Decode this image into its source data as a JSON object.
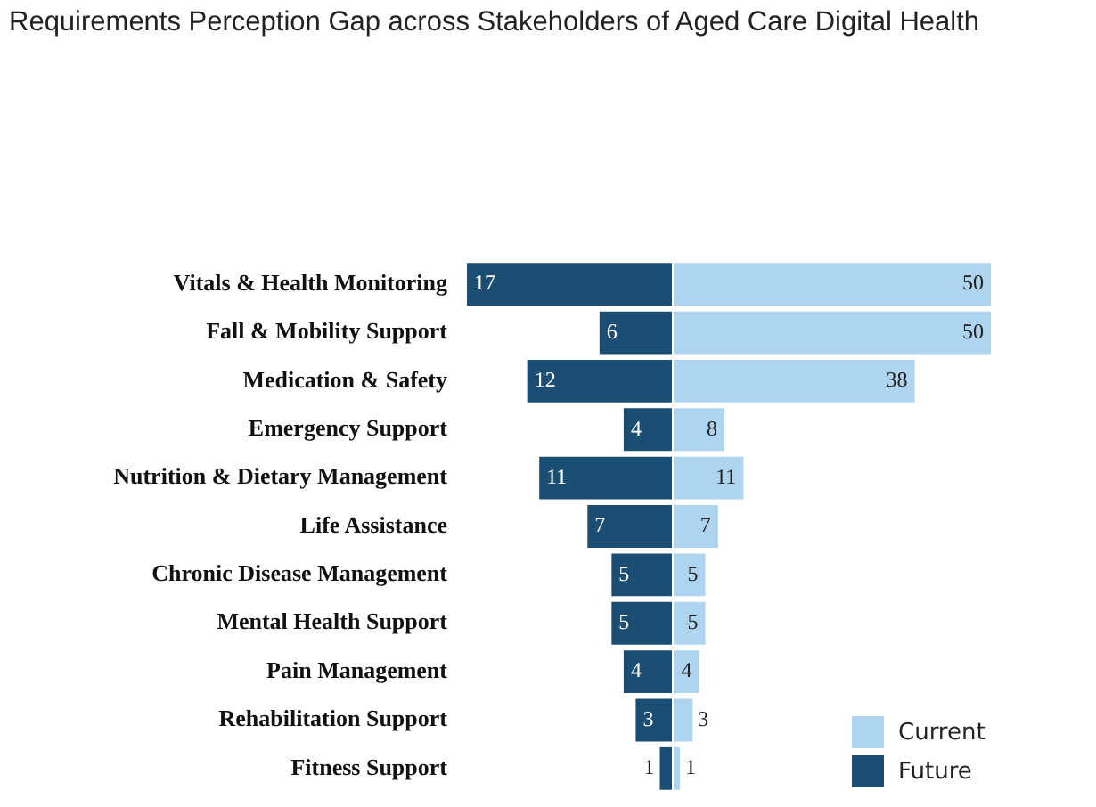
{
  "chart_data": [
    {
      "type": "bar",
      "orientation": "horizontal",
      "title": "Requirements Perception Gap across Stakeholders of Aged Care Digital Health",
      "categories": [
        "Vitals & Health Monitoring",
        "Fall & Mobility Support",
        "Medication & Safety",
        "Emergency Support",
        "Nutrition & Dietary Management",
        "Life Assistance",
        "Chronic Disease Management",
        "Mental Health Support",
        "Pain Management",
        "Rehabilitation Support",
        "Fitness Support"
      ],
      "series": [
        {
          "name": "Future",
          "color": "#1c4e73",
          "values": [
            17,
            6,
            12,
            4,
            11,
            7,
            5,
            5,
            4,
            3,
            1
          ]
        }
      ],
      "xlim": [
        17,
        0
      ],
      "tick_labels": "y",
      "data_labels": true,
      "legend": "bottom right"
    },
    {
      "type": "bar",
      "orientation": "horizontal",
      "categories": [
        null,
        null,
        null,
        null,
        null,
        null,
        null,
        null,
        null,
        null,
        null
      ],
      "series": [
        {
          "name": "Current",
          "color": "#aed4ef",
          "values": [
            50,
            50,
            38,
            8,
            11,
            7,
            5,
            5,
            4,
            3,
            1
          ]
        }
      ],
      "xlim": [
        0,
        50
      ],
      "tick_labels": false,
      "data_labels": true,
      "legend": "bottom right"
    }
  ]
}
